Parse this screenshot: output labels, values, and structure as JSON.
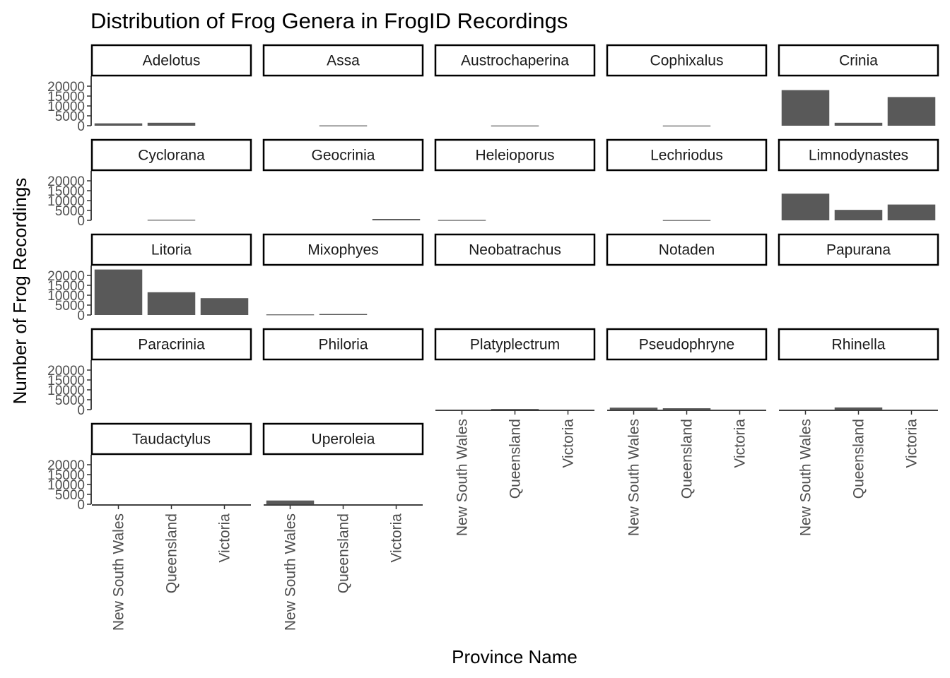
{
  "chart_data": {
    "type": "bar",
    "title": "Distribution of Frog Genera in FrogID Recordings",
    "xlabel": "Province Name",
    "ylabel": "Number of Frog Recordings",
    "categories": [
      "New South Wales",
      "Queensland",
      "Victoria"
    ],
    "ylim": [
      0,
      25000
    ],
    "yticks": [
      0,
      5000,
      10000,
      15000,
      20000
    ],
    "bar_color": "#595959",
    "grid": false,
    "layout": "facet_wrap 5 columns, free x",
    "facets": [
      {
        "name": "Adelotus",
        "values": [
          1200,
          1500,
          null
        ]
      },
      {
        "name": "Assa",
        "values": [
          null,
          150,
          null
        ]
      },
      {
        "name": "Austrochaperina",
        "values": [
          null,
          100,
          null
        ]
      },
      {
        "name": "Cophixalus",
        "values": [
          null,
          80,
          null
        ]
      },
      {
        "name": "Crinia",
        "values": [
          18000,
          1500,
          14500
        ]
      },
      {
        "name": "Cyclorana",
        "values": [
          null,
          300,
          null
        ]
      },
      {
        "name": "Geocrinia",
        "values": [
          null,
          null,
          700
        ]
      },
      {
        "name": "Heleioporus",
        "values": [
          200,
          null,
          null
        ]
      },
      {
        "name": "Lechriodus",
        "values": [
          null,
          150,
          null
        ]
      },
      {
        "name": "Limnodynastes",
        "values": [
          13500,
          5300,
          8000
        ]
      },
      {
        "name": "Litoria",
        "values": [
          23000,
          11500,
          8500
        ]
      },
      {
        "name": "Mixophyes",
        "values": [
          300,
          500,
          null
        ]
      },
      {
        "name": "Neobatrachus",
        "values": [
          null,
          null,
          null
        ]
      },
      {
        "name": "Notaden",
        "values": [
          null,
          null,
          null
        ]
      },
      {
        "name": "Papurana",
        "values": [
          null,
          null,
          null
        ]
      },
      {
        "name": "Paracrinia",
        "values": [
          null,
          null,
          null
        ]
      },
      {
        "name": "Philoria",
        "values": [
          null,
          null,
          null
        ]
      },
      {
        "name": "Platyplectrum",
        "values": [
          null,
          300,
          null
        ]
      },
      {
        "name": "Pseudophryne",
        "values": [
          1000,
          700,
          null
        ]
      },
      {
        "name": "Rhinella",
        "values": [
          null,
          1100,
          null
        ]
      },
      {
        "name": "Taudactylus",
        "values": [
          null,
          null,
          null
        ]
      },
      {
        "name": "Uperoleia",
        "values": [
          1900,
          null,
          null
        ]
      }
    ]
  }
}
